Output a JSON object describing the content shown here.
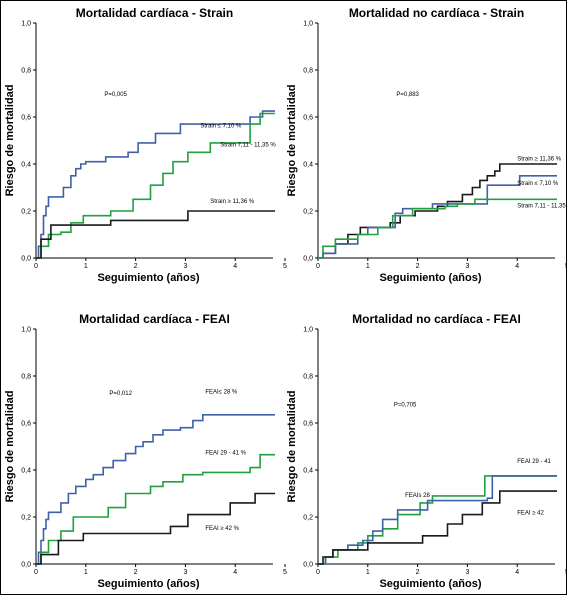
{
  "chart_data": [
    {
      "type": "line",
      "title": "Mortalidad cardíaca - Strain",
      "xlabel": "Seguimiento (años)",
      "ylabel": "Riesgo de mortalidad",
      "xlim": [
        0,
        5
      ],
      "ylim": [
        0,
        1.0
      ],
      "xticks": [
        "0",
        "1",
        "2",
        "3",
        "4",
        "5"
      ],
      "yticks": [
        "0,0",
        "0,2",
        "0,4",
        "0,6",
        "0,8",
        "1,0"
      ],
      "annotations": [
        {
          "text": "P=0,005",
          "x": 1.6,
          "y": 0.69
        }
      ],
      "series": [
        {
          "name": "Strain ≤ 7,10 %",
          "color": "#4060a8",
          "label_at": [
            3.3,
            0.555
          ],
          "x": [
            0,
            0.05,
            0.1,
            0.15,
            0.2,
            0.25,
            0.35,
            0.55,
            0.7,
            0.8,
            0.9,
            1.0,
            1.2,
            1.4,
            1.6,
            1.85,
            2.05,
            2.4,
            2.9,
            4.3,
            4.55,
            4.8
          ],
          "y": [
            0,
            0.05,
            0.1,
            0.18,
            0.22,
            0.26,
            0.26,
            0.3,
            0.35,
            0.38,
            0.4,
            0.41,
            0.41,
            0.43,
            0.43,
            0.45,
            0.49,
            0.53,
            0.57,
            0.6,
            0.625,
            0.625
          ]
        },
        {
          "name": "Strain 7,11 - 11,35 %",
          "color": "#22a040",
          "label_at": [
            3.7,
            0.475
          ],
          "x": [
            0,
            0.1,
            0.25,
            0.5,
            0.7,
            0.95,
            1.5,
            1.95,
            2.3,
            2.55,
            2.75,
            3.05,
            3.5,
            4.3,
            4.5,
            4.8
          ],
          "y": [
            0,
            0.05,
            0.1,
            0.11,
            0.15,
            0.18,
            0.2,
            0.25,
            0.31,
            0.36,
            0.41,
            0.45,
            0.49,
            0.57,
            0.615,
            0.615
          ]
        },
        {
          "name": "Strain  ≥ 11,36 %",
          "color": "#1a1a1a",
          "label_at": [
            3.5,
            0.235
          ],
          "x": [
            0,
            0.1,
            0.3,
            1.5,
            3.05,
            4.8
          ],
          "y": [
            0,
            0.08,
            0.14,
            0.16,
            0.2,
            0.2
          ]
        }
      ]
    },
    {
      "type": "line",
      "title": "Mortalidad no cardíaca - Strain",
      "xlabel": "Seguimiento (años)",
      "ylabel": "Riesgo de mortalidad",
      "xlim": [
        0,
        5
      ],
      "ylim": [
        0,
        1.0
      ],
      "xticks": [
        "0",
        "1",
        "2",
        "3",
        "4",
        "5"
      ],
      "yticks": [
        "0,0",
        "0,2",
        "0,4",
        "0,6",
        "0,8",
        "1,0"
      ],
      "annotations": [
        {
          "text": "P=0,883",
          "x": 1.8,
          "y": 0.69
        }
      ],
      "series": [
        {
          "name": "Strain  ≥ 11,36 %",
          "color": "#1a1a1a",
          "label_at": [
            4.0,
            0.415
          ],
          "x": [
            0,
            0.1,
            0.35,
            0.6,
            0.85,
            1.45,
            1.65,
            1.95,
            2.4,
            2.6,
            2.9,
            3.1,
            3.25,
            3.4,
            3.55,
            3.65,
            4.8
          ],
          "y": [
            0,
            0.02,
            0.06,
            0.1,
            0.13,
            0.15,
            0.18,
            0.2,
            0.22,
            0.24,
            0.27,
            0.3,
            0.33,
            0.35,
            0.37,
            0.4,
            0.4
          ]
        },
        {
          "name": "Strain ≤ 7,10 %",
          "color": "#4060a8",
          "label_at": [
            4.0,
            0.31
          ],
          "x": [
            0,
            0.1,
            0.35,
            0.8,
            1.0,
            1.55,
            1.7,
            2.3,
            3.4,
            4.05,
            4.8
          ],
          "y": [
            0,
            0.02,
            0.06,
            0.1,
            0.13,
            0.19,
            0.21,
            0.23,
            0.31,
            0.35,
            0.35
          ]
        },
        {
          "name": "Strain 7,11 - 11,35 %",
          "color": "#22a040",
          "label_at": [
            4.0,
            0.215
          ],
          "x": [
            0,
            0.1,
            0.35,
            0.8,
            1.2,
            1.5,
            1.9,
            2.55,
            2.8,
            3.15,
            3.45,
            4.8
          ],
          "y": [
            0,
            0.05,
            0.08,
            0.1,
            0.13,
            0.18,
            0.21,
            0.22,
            0.23,
            0.25,
            0.25,
            0.25
          ]
        }
      ]
    },
    {
      "type": "line",
      "title": "Mortalidad cardíaca - FEAI",
      "xlabel": "Seguimiento (años)",
      "ylabel": "Riesgo de mortalidad",
      "xlim": [
        0,
        5
      ],
      "ylim": [
        0,
        1.0
      ],
      "xticks": [
        "0",
        "1",
        "2",
        "3",
        "4",
        "5"
      ],
      "yticks": [
        "0,0",
        "0,2",
        "0,4",
        "0,6",
        "0,8",
        "1,0"
      ],
      "annotations": [
        {
          "text": "P=0,012",
          "x": 1.7,
          "y": 0.72
        }
      ],
      "series": [
        {
          "name": "FEAI≤ 28 %",
          "color": "#4060a8",
          "label_at": [
            3.4,
            0.725
          ],
          "x": [
            0,
            0.05,
            0.1,
            0.15,
            0.2,
            0.25,
            0.35,
            0.5,
            0.65,
            0.8,
            1.0,
            1.15,
            1.35,
            1.55,
            1.8,
            2.0,
            2.15,
            2.35,
            2.55,
            2.9,
            3.15,
            3.35,
            4.8
          ],
          "y": [
            0,
            0.05,
            0.1,
            0.15,
            0.19,
            0.22,
            0.22,
            0.26,
            0.3,
            0.33,
            0.36,
            0.38,
            0.41,
            0.44,
            0.47,
            0.5,
            0.52,
            0.55,
            0.57,
            0.58,
            0.61,
            0.635,
            0.635
          ]
        },
        {
          "name": "FEAI 29 - 41 %",
          "color": "#22a040",
          "label_at": [
            3.4,
            0.465
          ],
          "x": [
            0,
            0.1,
            0.25,
            0.5,
            0.75,
            1.45,
            1.8,
            2.3,
            2.55,
            2.95,
            3.35,
            4.3,
            4.5,
            4.8
          ],
          "y": [
            0,
            0.05,
            0.1,
            0.14,
            0.2,
            0.24,
            0.3,
            0.33,
            0.35,
            0.38,
            0.39,
            0.41,
            0.465,
            0.465
          ]
        },
        {
          "name": "FEAI ≥ 42 %",
          "color": "#1a1a1a",
          "label_at": [
            3.4,
            0.145
          ],
          "x": [
            0,
            0.1,
            0.45,
            0.95,
            2.7,
            3.05,
            3.9,
            4.4,
            4.8
          ],
          "y": [
            0,
            0.04,
            0.1,
            0.13,
            0.16,
            0.21,
            0.26,
            0.3,
            0.3
          ]
        }
      ]
    },
    {
      "type": "line",
      "title": "Mortalidad no cardíaca - FEAI",
      "xlabel": "Seguimiento (años)",
      "ylabel": "Riesgo de mortalidad",
      "xlim": [
        0,
        5
      ],
      "ylim": [
        0,
        1.0
      ],
      "xticks": [
        "0",
        "1",
        "2",
        "3",
        "4",
        "5"
      ],
      "yticks": [
        "0,0",
        "0,2",
        "0,4",
        "0,6",
        "0,8",
        "1,0"
      ],
      "annotations": [
        {
          "text": "P=0,705",
          "x": 1.75,
          "y": 0.67
        }
      ],
      "series": [
        {
          "name": "FEAI 29 - 41",
          "color": "#22a040",
          "label_at": [
            4.0,
            0.43
          ],
          "x": [
            0,
            0.15,
            0.4,
            0.8,
            1.0,
            1.3,
            1.6,
            2.05,
            2.3,
            3.35,
            4.8
          ],
          "y": [
            0,
            0.03,
            0.06,
            0.09,
            0.12,
            0.15,
            0.21,
            0.26,
            0.29,
            0.375,
            0.375
          ]
        },
        {
          "name": "FEAIs 28",
          "color": "#4060a8",
          "label_at": [
            1.75,
            0.285
          ],
          "x": [
            0,
            0.15,
            0.3,
            0.6,
            0.9,
            1.1,
            1.3,
            1.6,
            2.2,
            3.4,
            3.5,
            4.8
          ],
          "y": [
            0,
            0.03,
            0.06,
            0.08,
            0.1,
            0.14,
            0.19,
            0.23,
            0.27,
            0.28,
            0.375,
            0.375
          ]
        },
        {
          "name": "FEAI ≥ 42",
          "color": "#1a1a1a",
          "label_at": [
            4.0,
            0.21
          ],
          "x": [
            0,
            0.1,
            0.3,
            1.0,
            2.1,
            2.6,
            2.9,
            3.3,
            3.65,
            4.8
          ],
          "y": [
            0,
            0.03,
            0.06,
            0.09,
            0.12,
            0.17,
            0.21,
            0.26,
            0.31,
            0.31
          ]
        }
      ]
    }
  ]
}
